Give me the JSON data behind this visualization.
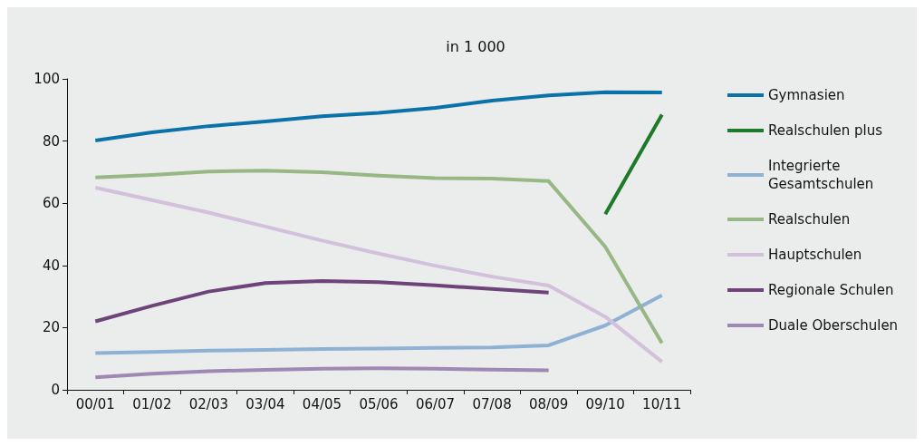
{
  "chart_data": {
    "type": "line",
    "title": "in 1 000",
    "categories": [
      "00/01",
      "01/02",
      "02/03",
      "03/04",
      "04/05",
      "05/06",
      "06/07",
      "07/08",
      "08/09",
      "09/10",
      "10/11"
    ],
    "series": [
      {
        "name": "Gymnasien",
        "color": "#0a72a8",
        "values": [
          80.2,
          82.8,
          84.8,
          86.3,
          88,
          89.1,
          90.7,
          93,
          94.7,
          95.7,
          95.6
        ]
      },
      {
        "name": "Realschulen plus",
        "color": "#1e7a2a",
        "values": [
          null,
          null,
          null,
          null,
          null,
          null,
          null,
          null,
          null,
          56.5,
          88.5
        ]
      },
      {
        "name": "Integrierte Gesamtschulen",
        "color": "#8fb2d4",
        "values": [
          11.8,
          12.2,
          12.6,
          12.8,
          13.1,
          13.3,
          13.5,
          13.6,
          14.3,
          20.7,
          30.4
        ]
      },
      {
        "name": "Realschulen",
        "color": "#97b884",
        "values": [
          68.3,
          69.1,
          70.2,
          70.5,
          70,
          68.9,
          68.1,
          67.9,
          67.1,
          46,
          15
        ]
      },
      {
        "name": "Hauptschulen",
        "color": "#d3c0da",
        "values": [
          65,
          61,
          57,
          52.5,
          48,
          43.8,
          39.9,
          36.4,
          33.5,
          23.5,
          9
        ]
      },
      {
        "name": "Regionale Schulen",
        "color": "#6e4379",
        "values": [
          22,
          27,
          31.6,
          34.3,
          35,
          34.6,
          33.6,
          32.4,
          31.3,
          null,
          null
        ]
      },
      {
        "name": "Duale Oberschulen",
        "color": "#a088b4",
        "values": [
          4,
          5.2,
          6,
          6.4,
          6.8,
          6.9,
          6.8,
          6.5,
          6.3,
          null,
          null
        ]
      }
    ],
    "ylim": [
      0,
      100
    ],
    "yticks": [
      0,
      20,
      40,
      60,
      80,
      100
    ],
    "grid": false,
    "legend": "right",
    "marker": "none",
    "line_style": "solid"
  }
}
